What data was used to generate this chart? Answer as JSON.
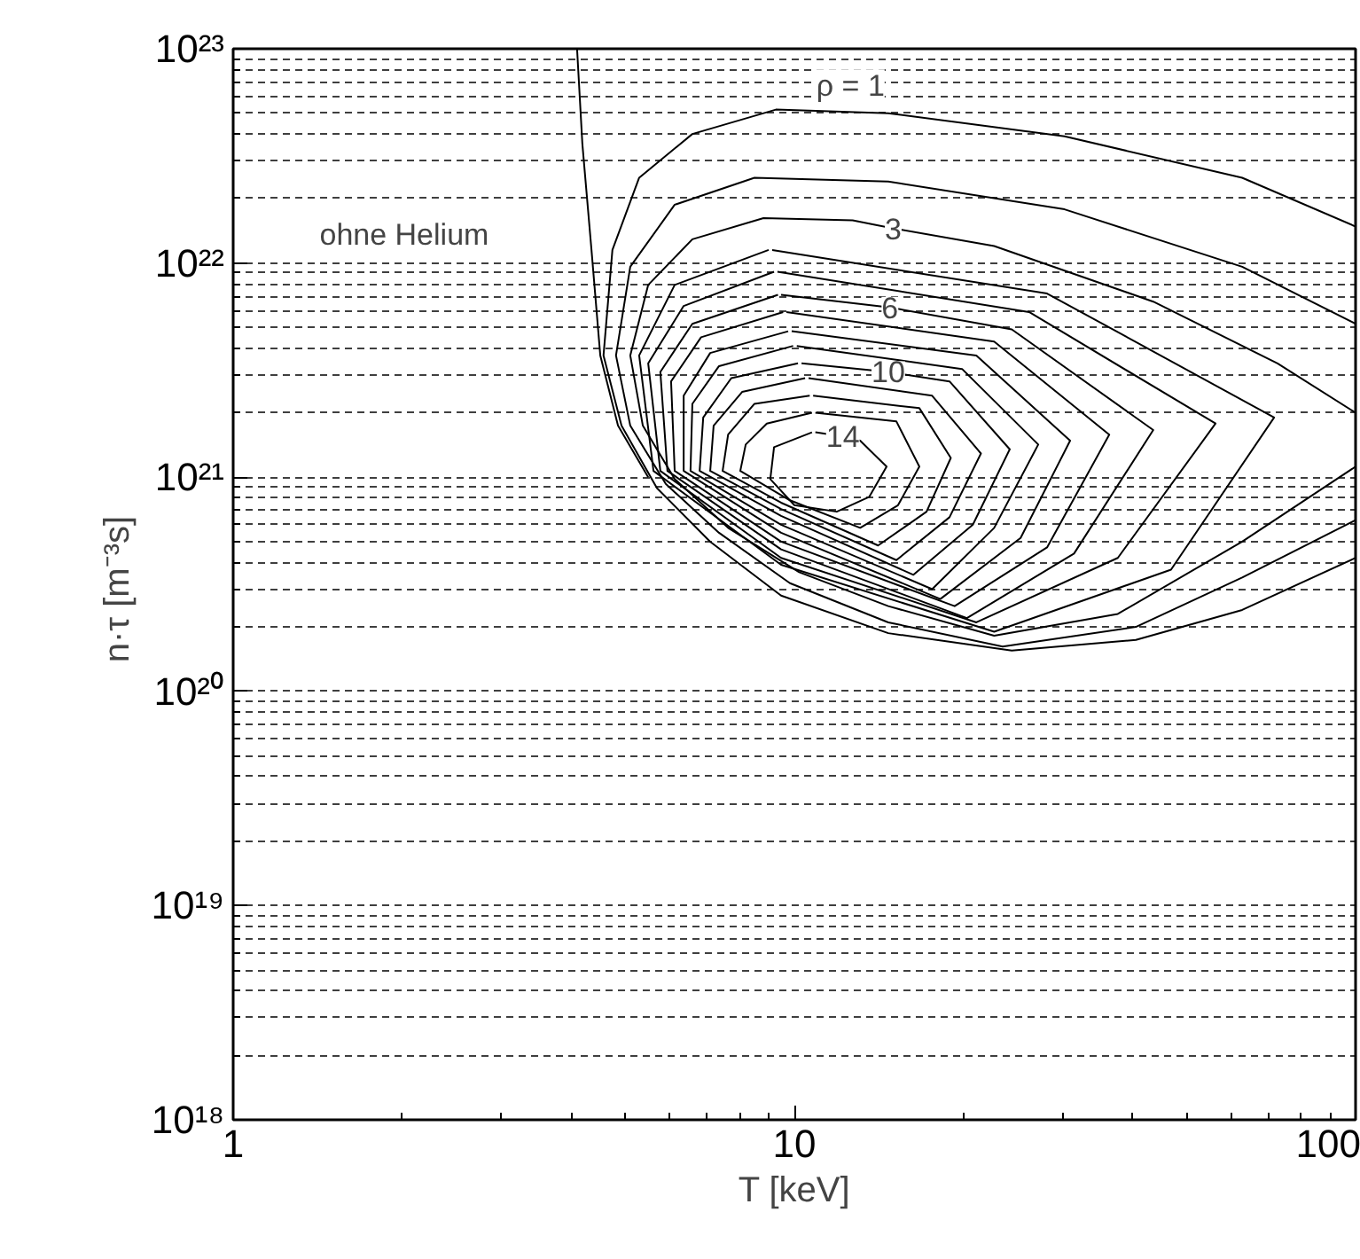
{
  "chart_data": {
    "type": "line",
    "xlabel": "T [keV]",
    "ylabel": "n·τ  [m⁻³s]",
    "log": "xy",
    "grid": true,
    "xlim": [
      1,
      100
    ],
    "ylim": [
      1e+18,
      1e+23
    ],
    "xticks": [
      1,
      10,
      100
    ],
    "yticks": [
      {
        "value": 1e+18,
        "label": "10¹⁸"
      },
      {
        "value": 1e+19,
        "label": "10¹⁹"
      },
      {
        "value": 1e+20,
        "label": "10²⁰"
      },
      {
        "value": 1e+21,
        "label": "10²¹"
      },
      {
        "value": 1e+22,
        "label": "10²²"
      },
      {
        "value": 1e+23,
        "label": "10²³"
      }
    ],
    "series": [
      {
        "color": "#000000",
        "x": [
          100,
          62.8,
          30.3,
          14.7,
          9.27,
          6.58,
          5.29,
          4.74,
          4.57,
          4.92,
          5.69,
          7.08,
          9.47,
          14.7,
          24.4,
          40.6,
          62.8,
          100
        ],
        "values": [
          1.48e+22,
          2.5e+22,
          3.9e+22,
          5e+22,
          5.2e+22,
          4e+22,
          2.5e+22,
          1.15e+22,
          3.7e+21,
          1.74e+21,
          8.9e+20,
          5e+20,
          2.8e+20,
          1.87e+20,
          1.55e+20,
          1.74e+20,
          2.4e+20,
          4.2e+20
        ]
      },
      {
        "color": "#000000",
        "x": [
          100,
          62.8,
          30.3,
          14.7,
          8.49,
          6.12,
          5.1,
          4.81,
          5.1,
          5.9,
          7.34,
          9.82,
          14.7,
          23.5,
          40.6,
          62.8,
          100
        ],
        "values": [
          5.2e+21,
          9.6e+21,
          1.78e+22,
          2.4e+22,
          2.5e+22,
          1.87e+22,
          9.6e+21,
          3.7e+21,
          1.74e+21,
          9.3e+20,
          5.5e+20,
          3.2e+20,
          2.1e+20,
          1.62e+20,
          2e+20,
          3.4e+20,
          6.3e+20
        ]
      },
      {
        "color": "#000000",
        "x": [
          100,
          72.6,
          43.6,
          22.7,
          15.0,
          12.7,
          8.81,
          6.58,
          5.49,
          5.1,
          5.37,
          6.12,
          7.62,
          10.2,
          14.7,
          22.7,
          37.7,
          62.8,
          100
        ],
        "values": [
          2e+21,
          3.4e+21,
          6.6e+21,
          1.2e+22,
          1.45e+22,
          1.58e+22,
          1.62e+22,
          1.29e+22,
          7.9e+21,
          3.7e+21,
          1.74e+21,
          9.8e+20,
          5.8e+20,
          3.6e+20,
          2.5e+20,
          1.82e+20,
          2.3e+20,
          5e+20,
          1.12e+21
        ]
      },
      {
        "color": "#000000",
        "x": [
          9.13,
          28.2,
          71.6,
          46.9,
          22.7,
          9.47,
          5.61,
          5.29,
          6.12,
          9.0
        ],
        "values": [
          1.15e+22,
          7.2e+21,
          1.9e+21,
          3.7e+20,
          1.9e+20,
          3.9e+20,
          1.07e+21,
          3.7e+21,
          7.9e+21,
          1.15e+22
        ]
      },
      {
        "color": "#000000",
        "x": [
          9.33,
          26.2,
          56.3,
          37.7,
          21.1,
          9.47,
          5.77,
          5.49,
          6.35,
          9.2
        ],
        "values": [
          9.1e+21,
          5.9e+21,
          1.78e+21,
          4.2e+20,
          2.1e+20,
          4.2e+20,
          1.07e+21,
          3.4e+21,
          6.3e+21,
          9.1e+21
        ]
      },
      {
        "color": "#000000",
        "x": [
          9.47,
          14.8,
          24.4,
          43.6,
          31.5,
          20.3,
          9.47,
          5.94,
          5.77,
          6.58,
          9.35
        ],
        "values": [
          7.1e+21,
          6.2e+21,
          4.9e+21,
          1.66e+21,
          4.4e+20,
          2.2e+20,
          4.6e+20,
          1.07e+21,
          3.1e+21,
          5.2e+21,
          7.1e+21
        ]
      },
      {
        "color": "#000000",
        "x": [
          9.68,
          22.7,
          36.4,
          28.2,
          19.3,
          9.47,
          6.12,
          6.03,
          6.82,
          9.55
        ],
        "values": [
          5.9e+21,
          4.3e+21,
          1.58e+21,
          4.7e+20,
          2.5e+20,
          5e+20,
          1.07e+21,
          2.8e+21,
          4.5e+21,
          5.9e+21
        ]
      },
      {
        "color": "#000000",
        "x": [
          9.89,
          21.1,
          31.0,
          25.3,
          18.2,
          9.47,
          6.35,
          6.35,
          7.08,
          9.75
        ],
        "values": [
          4.8e+21,
          3.7e+21,
          1.48e+21,
          5.2e+20,
          2.7e+20,
          5.5e+20,
          1.07e+21,
          2.4e+21,
          3.8e+21,
          4.8e+21
        ]
      },
      {
        "color": "#000000",
        "x": [
          10.1,
          19.9,
          27.2,
          22.7,
          17.6,
          9.47,
          6.53,
          6.58,
          7.34,
          9.95
        ],
        "values": [
          4.1e+21,
          3.2e+21,
          1.42e+21,
          5.8e+20,
          3e+20,
          6e+20,
          1.07e+21,
          2.2e+21,
          3.3e+21,
          4.1e+21
        ]
      },
      {
        "color": "#000000",
        "x": [
          10.3,
          14.7,
          18.9,
          24.2,
          20.8,
          16.3,
          9.47,
          6.78,
          6.88,
          7.72,
          10.15
        ],
        "values": [
          3.4e+21,
          3.1e+21,
          2.8e+21,
          1.35e+21,
          6e+20,
          3.5e+20,
          6.6e+20,
          1.07e+21,
          1.9e+21,
          2.9e+21,
          3.4e+21
        ]
      },
      {
        "color": "#000000",
        "x": [
          10.6,
          17.6,
          21.5,
          18.9,
          15.2,
          9.47,
          7.08,
          7.18,
          8.07,
          10.45
        ],
        "values": [
          2.9e+21,
          2.4e+21,
          1.29e+21,
          6.5e+20,
          4.1e+20,
          7.1e+20,
          1.07e+21,
          1.74e+21,
          2.5e+21,
          2.9e+21
        ]
      },
      {
        "color": "#000000",
        "x": [
          10.8,
          16.7,
          19.0,
          17.2,
          14.1,
          9.47,
          7.45,
          7.62,
          8.49,
          10.65
        ],
        "values": [
          2.4e+21,
          2.1e+21,
          1.23e+21,
          6.9e+20,
          4.8e+20,
          7.6e+20,
          1.07e+21,
          1.58e+21,
          2.2e+21,
          2.4e+21
        ]
      },
      {
        "color": "#000000",
        "x": [
          10.9,
          15.2,
          16.7,
          15.3,
          13.1,
          9.82,
          8.01,
          8.19,
          8.93,
          10.75
        ],
        "values": [
          2e+21,
          1.82e+21,
          1.12e+21,
          7.4e+20,
          5.8e+20,
          7.8e+20,
          1.07e+21,
          1.42e+21,
          1.78e+21,
          2e+21
        ]
      },
      {
        "color": "#000000",
        "x": [
          10.9,
          12.2,
          13.1,
          14.6,
          13.6,
          11.9,
          10.0,
          9.06,
          9.2,
          10.75
        ],
        "values": [
          1.62e+21,
          1.55e+21,
          1.48e+21,
          1.12e+21,
          8.1e+20,
          6.9e+20,
          7.4e+20,
          9.8e+20,
          1.38e+21,
          1.62e+21
        ]
      },
      {
        "color": "#000000",
        "x": [
          4.1,
          4.19,
          4.35,
          4.51,
          4.85,
          5.49
        ],
        "values": [
          1e+23,
          3.6e+22,
          1.15e+22,
          3.7e+21,
          1.74e+21,
          1e+21
        ]
      }
    ],
    "annotations": [
      "ρ = 1",
      {
        "text": "3",
        "x": 15.0,
        "y": 1.45e+22
      },
      {
        "text": "6",
        "x": 14.8,
        "y": 6.2e+21
      },
      {
        "text": "10",
        "x": 14.7,
        "y": 3.1e+21
      },
      {
        "text": "14",
        "x": 12.2,
        "y": 1.55e+21
      },
      "ohne Helium"
    ]
  }
}
